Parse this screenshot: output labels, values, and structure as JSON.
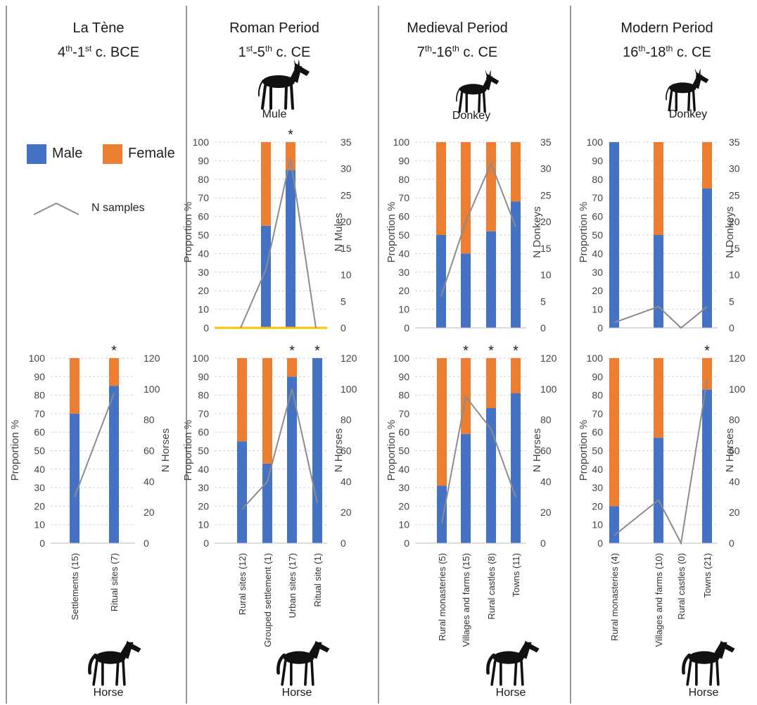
{
  "colors": {
    "male": "#4472c4",
    "female": "#ed7d31",
    "n_line": "#8c8c8c",
    "grid": "#cc99cc",
    "zero_line": "#ffc000"
  },
  "legend": {
    "male": "Male",
    "female": "Female",
    "n_samples": "N samples"
  },
  "periods": [
    {
      "name": "La Tène",
      "pre": "4",
      "sup1": "th",
      "mid": "-1",
      "sup2": "st",
      "post": " c. BCE"
    },
    {
      "name": "Roman Period",
      "pre": "1",
      "sup1": "st",
      "mid": "-5",
      "sup2": "th",
      "post": " c. CE"
    },
    {
      "name": "Medieval Period",
      "pre": "7",
      "sup1": "th",
      "mid": "-16",
      "sup2": "th",
      "post": " c. CE"
    },
    {
      "name": "Modern Period",
      "pre": "16",
      "sup1": "th",
      "mid": "-18",
      "sup2": "th",
      "post": " c. CE"
    }
  ],
  "animal_labels": {
    "mule": "Mule",
    "donkey_medieval": "Donkey",
    "donkey_modern": "Donkey",
    "horse": "Horse"
  },
  "chart_data": [
    {
      "id": "roman-mule",
      "type": "bar",
      "stacked": true,
      "period": "Roman Period",
      "animal": "Mule",
      "ylabel": "Proportion %",
      "y2label": "N Mules",
      "ylim": [
        0,
        100
      ],
      "y2lim": [
        0,
        35
      ],
      "yticks": [
        "0",
        "10",
        "20",
        "30",
        "40",
        "50",
        "60",
        "70",
        "80",
        "90",
        "100"
      ],
      "y2ticks": [
        "0",
        "5",
        "10",
        "15",
        "20",
        "25",
        "30",
        "35"
      ],
      "categories": [
        "",
        "",
        "",
        ""
      ],
      "series": [
        {
          "name": "Male",
          "values": [
            0,
            55,
            85,
            0
          ]
        },
        {
          "name": "Female",
          "values": [
            0,
            45,
            15,
            0
          ]
        },
        {
          "name": "N samples",
          "values": [
            0,
            11,
            32,
            0
          ]
        }
      ],
      "significant": [
        false,
        false,
        true,
        false
      ]
    },
    {
      "id": "medieval-donkey",
      "type": "bar",
      "stacked": true,
      "period": "Medieval Period",
      "animal": "Donkey",
      "ylabel": "Proportion %",
      "y2label": "N Donkeys",
      "ylim": [
        0,
        100
      ],
      "y2lim": [
        0,
        35
      ],
      "yticks": [
        "0",
        "10",
        "20",
        "30",
        "40",
        "50",
        "60",
        "70",
        "80",
        "90",
        "100"
      ],
      "y2ticks": [
        "0",
        "5",
        "10",
        "15",
        "20",
        "25",
        "30",
        "35"
      ],
      "categories": [
        "",
        "",
        "",
        ""
      ],
      "series": [
        {
          "name": "Male",
          "values": [
            50,
            40,
            52,
            68
          ]
        },
        {
          "name": "Female",
          "values": [
            50,
            60,
            48,
            32
          ]
        },
        {
          "name": "N samples",
          "values": [
            6,
            20,
            31,
            19
          ]
        }
      ],
      "significant": [
        false,
        false,
        false,
        false
      ]
    },
    {
      "id": "modern-donkey",
      "type": "bar",
      "stacked": true,
      "period": "Modern Period",
      "animal": "Donkey",
      "ylabel": "Proportion %",
      "y2label": "N Donkeys",
      "ylim": [
        0,
        100
      ],
      "y2lim": [
        0,
        35
      ],
      "yticks": [
        "0",
        "10",
        "20",
        "30",
        "40",
        "50",
        "60",
        "70",
        "80",
        "90",
        "100"
      ],
      "y2ticks": [
        "0",
        "5",
        "10",
        "15",
        "20",
        "25",
        "30",
        "35"
      ],
      "categories": [
        "",
        "",
        "",
        ""
      ],
      "series": [
        {
          "name": "Male",
          "values": [
            100,
            50,
            0,
            75
          ]
        },
        {
          "name": "Female",
          "values": [
            0,
            50,
            0,
            25
          ]
        },
        {
          "name": "N samples",
          "values": [
            1,
            4,
            0,
            4
          ]
        }
      ],
      "significant": [
        false,
        false,
        false,
        false
      ]
    },
    {
      "id": "latene-horse",
      "type": "bar",
      "stacked": true,
      "period": "La Tène",
      "animal": "Horse",
      "ylabel": "Proportion %",
      "y2label": "N Horses",
      "ylim": [
        0,
        100
      ],
      "y2lim": [
        0,
        120
      ],
      "yticks": [
        "0",
        "10",
        "20",
        "30",
        "40",
        "50",
        "60",
        "70",
        "80",
        "90",
        "100"
      ],
      "y2ticks": [
        "0",
        "20",
        "40",
        "60",
        "80",
        "100",
        "120"
      ],
      "categories": [
        "Settlements (15)",
        "Ritual sites (7)"
      ],
      "series": [
        {
          "name": "Male",
          "values": [
            70,
            85
          ]
        },
        {
          "name": "Female",
          "values": [
            30,
            15
          ]
        },
        {
          "name": "N samples",
          "values": [
            30,
            97
          ]
        }
      ],
      "significant": [
        false,
        true
      ]
    },
    {
      "id": "roman-horse",
      "type": "bar",
      "stacked": true,
      "period": "Roman Period",
      "animal": "Horse",
      "ylabel": "Proportion %",
      "y2label": "N Horses",
      "ylim": [
        0,
        100
      ],
      "y2lim": [
        0,
        120
      ],
      "yticks": [
        "0",
        "10",
        "20",
        "30",
        "40",
        "50",
        "60",
        "70",
        "80",
        "90",
        "100"
      ],
      "y2ticks": [
        "0",
        "20",
        "40",
        "60",
        "80",
        "100",
        "120"
      ],
      "categories": [
        "Rural sites (12)",
        "Grouped settlement (1)",
        "Urban sites (17)",
        "Ritual site (1)"
      ],
      "series": [
        {
          "name": "Male",
          "values": [
            55,
            43,
            90,
            100
          ]
        },
        {
          "name": "Female",
          "values": [
            45,
            57,
            10,
            0
          ]
        },
        {
          "name": "N samples",
          "values": [
            22,
            40,
            100,
            26
          ]
        }
      ],
      "significant": [
        false,
        false,
        true,
        true
      ]
    },
    {
      "id": "medieval-horse",
      "type": "bar",
      "stacked": true,
      "period": "Medieval Period",
      "animal": "Horse",
      "ylabel": "Proportion %",
      "y2label": "N Horses",
      "ylim": [
        0,
        100
      ],
      "y2lim": [
        0,
        120
      ],
      "yticks": [
        "0",
        "10",
        "20",
        "30",
        "40",
        "50",
        "60",
        "70",
        "80",
        "90",
        "100"
      ],
      "y2ticks": [
        "0",
        "20",
        "40",
        "60",
        "80",
        "100",
        "120"
      ],
      "categories": [
        "Rural monasteries (5)",
        "Villages and farms  (15)",
        "Rural castles (8)",
        "Towns (11)"
      ],
      "series": [
        {
          "name": "Male",
          "values": [
            31,
            59,
            73,
            81
          ]
        },
        {
          "name": "Female",
          "values": [
            69,
            41,
            27,
            19
          ]
        },
        {
          "name": "N samples",
          "values": [
            13,
            95,
            74,
            30
          ]
        }
      ],
      "significant": [
        false,
        true,
        true,
        true
      ]
    },
    {
      "id": "modern-horse",
      "type": "bar",
      "stacked": true,
      "period": "Modern Period",
      "animal": "Horse",
      "ylabel": "Proportion %",
      "y2label": "N Horses",
      "ylim": [
        0,
        100
      ],
      "y2lim": [
        0,
        120
      ],
      "yticks": [
        "0",
        "10",
        "20",
        "30",
        "40",
        "50",
        "60",
        "70",
        "80",
        "90",
        "100"
      ],
      "y2ticks": [
        "0",
        "20",
        "40",
        "60",
        "80",
        "100",
        "120"
      ],
      "categories": [
        "Rural monasteries (4)",
        "Villages and farms  (10)",
        "Rural castles (0)",
        "Towns (21)"
      ],
      "series": [
        {
          "name": "Male",
          "values": [
            20,
            57,
            0,
            83
          ]
        },
        {
          "name": "Female",
          "values": [
            80,
            43,
            0,
            17
          ]
        },
        {
          "name": "N samples",
          "values": [
            5,
            28,
            0,
            106
          ]
        }
      ],
      "significant": [
        false,
        false,
        false,
        true
      ]
    }
  ]
}
